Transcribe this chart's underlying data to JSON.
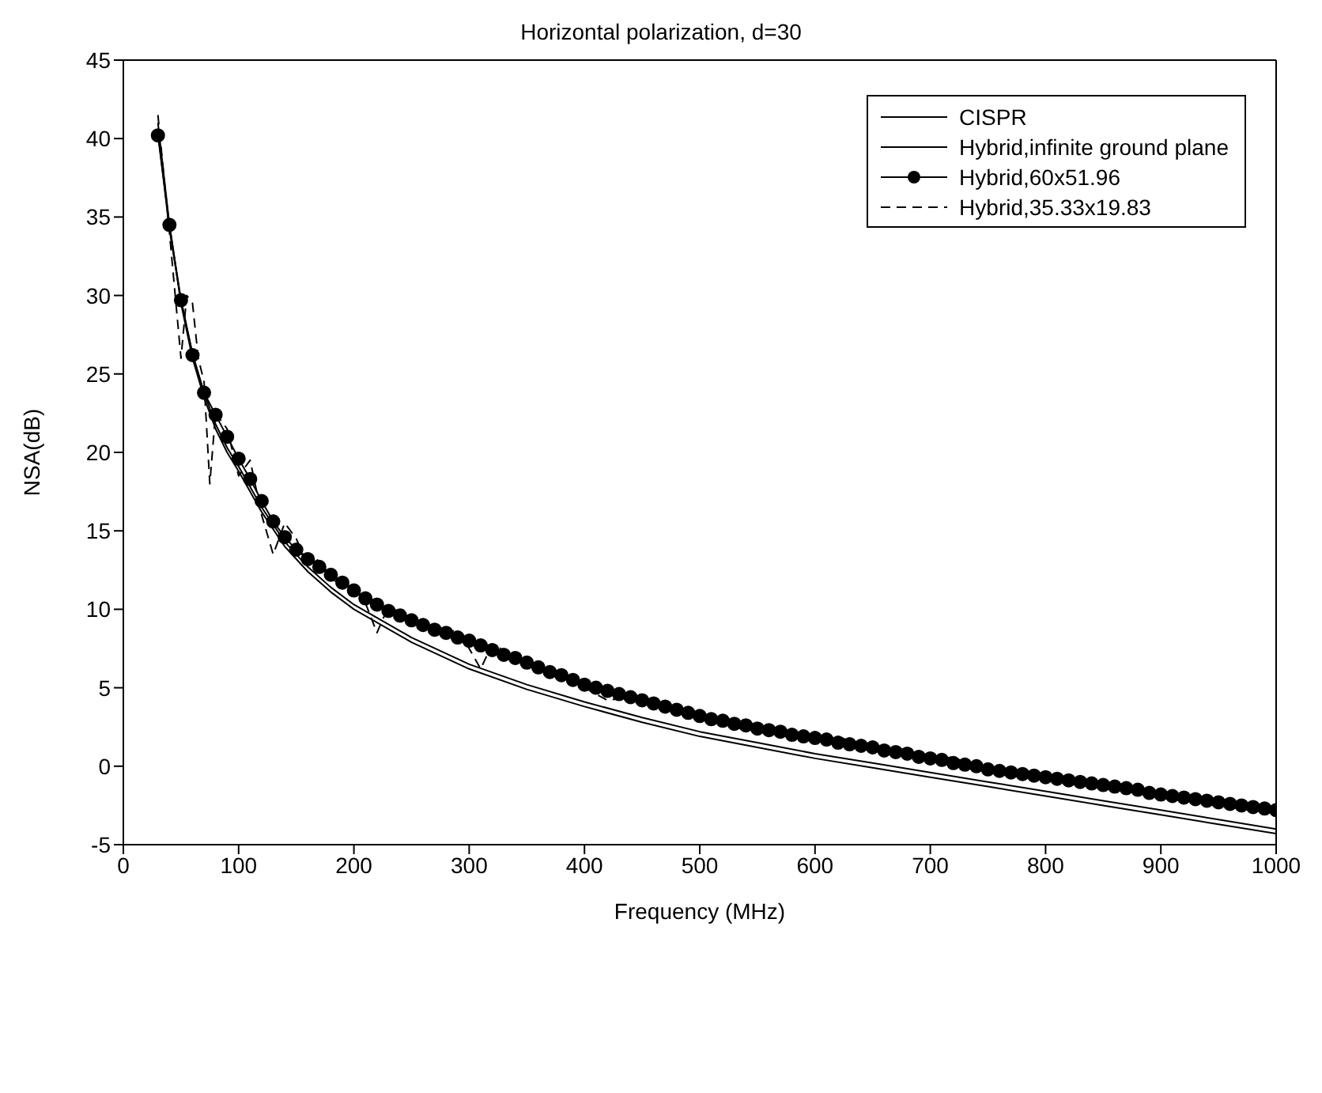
{
  "chart_data": {
    "type": "line",
    "title": "Horizontal polarization, d=30",
    "xlabel": "Frequency (MHz)",
    "ylabel": "NSA(dB)",
    "xlim": [
      0,
      1000
    ],
    "xticks": [
      0,
      100,
      200,
      300,
      400,
      500,
      600,
      700,
      800,
      900,
      1000
    ],
    "ylim": [
      -5,
      45
    ],
    "yticks": [
      -5,
      0,
      5,
      10,
      15,
      20,
      25,
      30,
      35,
      40,
      45
    ],
    "legend": "top right",
    "series": [
      {
        "name": "CISPR",
        "color": "#000000",
        "marker": "none",
        "line_style": "solid",
        "x": [
          30,
          40,
          50,
          60,
          70,
          80,
          90,
          100,
          120,
          140,
          160,
          180,
          200,
          250,
          300,
          350,
          400,
          450,
          500,
          550,
          600,
          650,
          700,
          750,
          800,
          850,
          900,
          950,
          1000
        ],
        "values": [
          41.0,
          34.5,
          29.5,
          26.0,
          23.5,
          21.5,
          20.0,
          18.8,
          16.2,
          14.0,
          12.4,
          11.1,
          10.0,
          7.9,
          6.2,
          4.9,
          3.8,
          2.8,
          1.9,
          1.2,
          0.5,
          -0.1,
          -0.7,
          -1.3,
          -1.9,
          -2.5,
          -3.1,
          -3.7,
          -4.3
        ]
      },
      {
        "name": "Hybrid,infinite ground plane",
        "color": "#000000",
        "marker": "none",
        "line_style": "solid",
        "x": [
          30,
          40,
          50,
          60,
          70,
          80,
          90,
          100,
          120,
          140,
          160,
          180,
          200,
          250,
          300,
          350,
          400,
          450,
          500,
          550,
          600,
          650,
          700,
          750,
          800,
          850,
          900,
          950,
          1000
        ],
        "values": [
          40.4,
          34.2,
          29.7,
          26.3,
          23.8,
          21.8,
          20.3,
          19.1,
          16.5,
          14.3,
          12.7,
          11.4,
          10.3,
          8.2,
          6.5,
          5.2,
          4.1,
          3.1,
          2.2,
          1.5,
          0.8,
          0.2,
          -0.4,
          -1.0,
          -1.6,
          -2.2,
          -2.8,
          -3.4,
          -4.0
        ]
      },
      {
        "name": "Hybrid,60x51.96",
        "color": "#000000",
        "marker": "circle",
        "line_style": "solid",
        "x": [
          30,
          40,
          50,
          60,
          70,
          80,
          90,
          100,
          110,
          120,
          130,
          140,
          150,
          160,
          170,
          180,
          190,
          200,
          210,
          220,
          230,
          240,
          250,
          260,
          270,
          280,
          290,
          300,
          310,
          320,
          330,
          340,
          350,
          360,
          370,
          380,
          390,
          400,
          410,
          420,
          430,
          440,
          450,
          460,
          470,
          480,
          490,
          500,
          510,
          520,
          530,
          540,
          550,
          560,
          570,
          580,
          590,
          600,
          610,
          620,
          630,
          640,
          650,
          660,
          670,
          680,
          690,
          700,
          710,
          720,
          730,
          740,
          750,
          760,
          770,
          780,
          790,
          800,
          810,
          820,
          830,
          840,
          850,
          860,
          870,
          880,
          890,
          900,
          910,
          920,
          930,
          940,
          950,
          960,
          970,
          980,
          990,
          1000
        ],
        "values": [
          40.2,
          34.5,
          29.7,
          26.2,
          23.8,
          22.4,
          21.0,
          19.6,
          18.3,
          16.9,
          15.6,
          14.6,
          13.8,
          13.2,
          12.7,
          12.2,
          11.7,
          11.2,
          10.7,
          10.3,
          9.9,
          9.6,
          9.3,
          9.0,
          8.7,
          8.5,
          8.2,
          8.0,
          7.7,
          7.4,
          7.1,
          6.9,
          6.6,
          6.3,
          6.0,
          5.8,
          5.5,
          5.2,
          5.0,
          4.8,
          4.6,
          4.4,
          4.2,
          4.0,
          3.8,
          3.6,
          3.4,
          3.2,
          3.0,
          2.9,
          2.7,
          2.6,
          2.4,
          2.3,
          2.2,
          2.0,
          1.9,
          1.8,
          1.7,
          1.5,
          1.4,
          1.3,
          1.2,
          1.0,
          0.9,
          0.8,
          0.6,
          0.5,
          0.4,
          0.2,
          0.1,
          0.0,
          -0.2,
          -0.3,
          -0.4,
          -0.5,
          -0.6,
          -0.7,
          -0.8,
          -0.9,
          -1.0,
          -1.1,
          -1.2,
          -1.3,
          -1.4,
          -1.5,
          -1.7,
          -1.8,
          -1.9,
          -2.0,
          -2.1,
          -2.2,
          -2.3,
          -2.4,
          -2.5,
          -2.6,
          -2.7,
          -2.8
        ]
      },
      {
        "name": "Hybrid,35.33x19.83",
        "color": "#000000",
        "marker": "none",
        "line_style": "dashed",
        "x": [
          30,
          40,
          50,
          55,
          60,
          65,
          70,
          75,
          80,
          90,
          100,
          110,
          120,
          130,
          140,
          150,
          160,
          170,
          180,
          190,
          200,
          210,
          220,
          230,
          250,
          270,
          290,
          300,
          310,
          320,
          350,
          380,
          400,
          420,
          450,
          480,
          500,
          530,
          560,
          600,
          620,
          650,
          680,
          700,
          720,
          750,
          780,
          800,
          830,
          860,
          880,
          900,
          930,
          960,
          980,
          1000
        ],
        "values": [
          41.5,
          34.0,
          26.0,
          30.0,
          29.5,
          26.0,
          24.5,
          18.0,
          22.5,
          21.5,
          18.5,
          19.5,
          16.0,
          13.5,
          15.5,
          14.5,
          12.8,
          13.2,
          12.0,
          11.5,
          11.5,
          10.4,
          8.5,
          10.2,
          9.4,
          8.3,
          8.7,
          7.5,
          6.2,
          7.8,
          6.5,
          6.0,
          5.0,
          4.2,
          4.5,
          3.3,
          3.4,
          2.4,
          2.5,
          1.5,
          1.9,
          1.0,
          1.1,
          0.3,
          0.6,
          -0.5,
          -0.2,
          -0.9,
          -0.7,
          -1.6,
          -1.2,
          -2.0,
          -1.8,
          -2.6,
          -2.3,
          -3.0
        ]
      }
    ]
  }
}
